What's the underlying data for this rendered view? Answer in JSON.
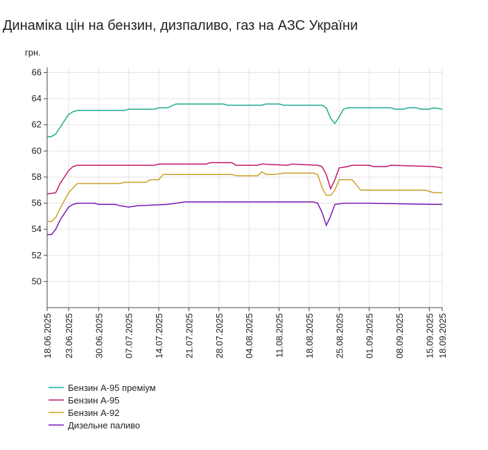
{
  "chart_data": {
    "type": "line",
    "title": "Динаміка цін на бензин, дизпаливо, газ на АЗС України",
    "y_label": "грн.",
    "ylim": [
      48,
      66.4
    ],
    "yticks": [
      50,
      52,
      54,
      56,
      58,
      60,
      62,
      64,
      66
    ],
    "xlim": [
      "18.06.2025",
      "18.09.2025"
    ],
    "xticks": [
      "18.06.2025",
      "23.06.2025",
      "30.06.2025",
      "07.07.2025",
      "14.07.2025",
      "21.07.2025",
      "28.07.2025",
      "04.08.2025",
      "11.08.2025",
      "18.08.2025",
      "25.08.2025",
      "01.09.2025",
      "08.09.2025",
      "15.09.2025",
      "18.09.2025"
    ],
    "grid": true,
    "legend": "bottom",
    "series": [
      {
        "name": "Бензин А-95 преміум",
        "color": "#1aaa8f",
        "x": [
          "18.06.2025",
          "19.06.2025",
          "20.06.2025",
          "21.06.2025",
          "22.06.2025",
          "23.06.2025",
          "24.06.2025",
          "25.06.2025",
          "06.07.2025",
          "07.07.2025",
          "13.07.2025",
          "14.07.2025",
          "16.07.2025",
          "18.07.2025",
          "29.07.2025",
          "30.07.2025",
          "07.08.2025",
          "08.08.2025",
          "11.08.2025",
          "12.08.2025",
          "20.08.2025",
          "21.08.2025",
          "22.08.2025",
          "23.08.2025",
          "24.08.2025",
          "25.08.2025",
          "26.08.2025",
          "27.08.2025",
          "06.09.2025",
          "07.09.2025",
          "09.09.2025",
          "10.09.2025",
          "12.09.2025",
          "13.09.2025",
          "15.09.2025",
          "16.09.2025",
          "18.09.2025"
        ],
        "values": [
          61.1,
          61.1,
          61.3,
          61.8,
          62.3,
          62.8,
          63.0,
          63.1,
          63.1,
          63.2,
          63.2,
          63.3,
          63.3,
          63.6,
          63.6,
          63.5,
          63.5,
          63.6,
          63.6,
          63.5,
          63.5,
          63.5,
          63.3,
          62.5,
          62.1,
          62.6,
          63.2,
          63.3,
          63.3,
          63.2,
          63.2,
          63.3,
          63.3,
          63.2,
          63.2,
          63.3,
          63.2
        ]
      },
      {
        "name": "Бензин А-95",
        "color": "#c0176b",
        "x": [
          "18.06.2025",
          "20.06.2025",
          "21.06.2025",
          "22.06.2025",
          "23.06.2025",
          "24.06.2025",
          "25.06.2025",
          "13.07.2025",
          "14.07.2025",
          "25.07.2025",
          "26.07.2025",
          "31.07.2025",
          "01.08.2025",
          "06.08.2025",
          "07.08.2025",
          "13.08.2025",
          "14.08.2025",
          "20.08.2025",
          "21.08.2025",
          "22.08.2025",
          "23.08.2025",
          "24.08.2025",
          "25.08.2025",
          "27.08.2025",
          "28.08.2025",
          "01.09.2025",
          "02.09.2025",
          "05.09.2025",
          "06.09.2025",
          "16.09.2025",
          "18.09.2025"
        ],
        "values": [
          56.7,
          56.8,
          57.5,
          58.0,
          58.5,
          58.8,
          58.9,
          58.9,
          59.0,
          59.0,
          59.1,
          59.1,
          58.9,
          58.9,
          59.0,
          58.9,
          59.0,
          58.9,
          58.8,
          58.2,
          57.1,
          57.8,
          58.7,
          58.8,
          58.9,
          58.9,
          58.8,
          58.8,
          58.9,
          58.8,
          58.7
        ]
      },
      {
        "name": "Бензин А-92",
        "color": "#c8a024",
        "x": [
          "18.06.2025",
          "19.06.2025",
          "20.06.2025",
          "21.06.2025",
          "22.06.2025",
          "23.06.2025",
          "25.06.2025",
          "05.07.2025",
          "06.07.2025",
          "11.07.2025",
          "12.07.2025",
          "14.07.2025",
          "15.07.2025",
          "31.07.2025",
          "01.08.2025",
          "06.08.2025",
          "07.08.2025",
          "08.08.2025",
          "10.08.2025",
          "12.08.2025",
          "19.08.2025",
          "20.08.2025",
          "21.08.2025",
          "22.08.2025",
          "23.08.2025",
          "24.08.2025",
          "25.08.2025",
          "28.08.2025",
          "30.08.2025",
          "14.09.2025",
          "16.09.2025",
          "18.09.2025"
        ],
        "values": [
          54.6,
          54.6,
          54.9,
          55.6,
          56.2,
          56.8,
          57.5,
          57.5,
          57.6,
          57.6,
          57.8,
          57.8,
          58.2,
          58.2,
          58.1,
          58.1,
          58.4,
          58.2,
          58.2,
          58.3,
          58.3,
          58.2,
          57.2,
          56.6,
          56.6,
          57.0,
          57.8,
          57.8,
          57.0,
          57.0,
          56.8,
          56.8
        ]
      },
      {
        "name": "Дизельне паливо",
        "color": "#7a16b5",
        "x": [
          "18.06.2025",
          "19.06.2025",
          "20.06.2025",
          "21.06.2025",
          "22.06.2025",
          "23.06.2025",
          "24.06.2025",
          "25.06.2025",
          "29.06.2025",
          "30.06.2025",
          "04.07.2025",
          "05.07.2025",
          "07.07.2025",
          "09.07.2025",
          "16.07.2025",
          "18.07.2025",
          "20.07.2025",
          "19.08.2025",
          "20.08.2025",
          "21.08.2025",
          "22.08.2025",
          "23.08.2025",
          "24.08.2025",
          "26.08.2025",
          "01.09.2025",
          "16.09.2025",
          "18.09.2025"
        ],
        "values": [
          53.6,
          53.6,
          54.0,
          54.7,
          55.2,
          55.7,
          55.9,
          56.0,
          56.0,
          55.9,
          55.9,
          55.8,
          55.7,
          55.8,
          55.9,
          56.0,
          56.1,
          56.1,
          56.0,
          55.3,
          54.3,
          55.0,
          55.9,
          56.0,
          56.0,
          55.9,
          55.9
        ]
      }
    ]
  }
}
